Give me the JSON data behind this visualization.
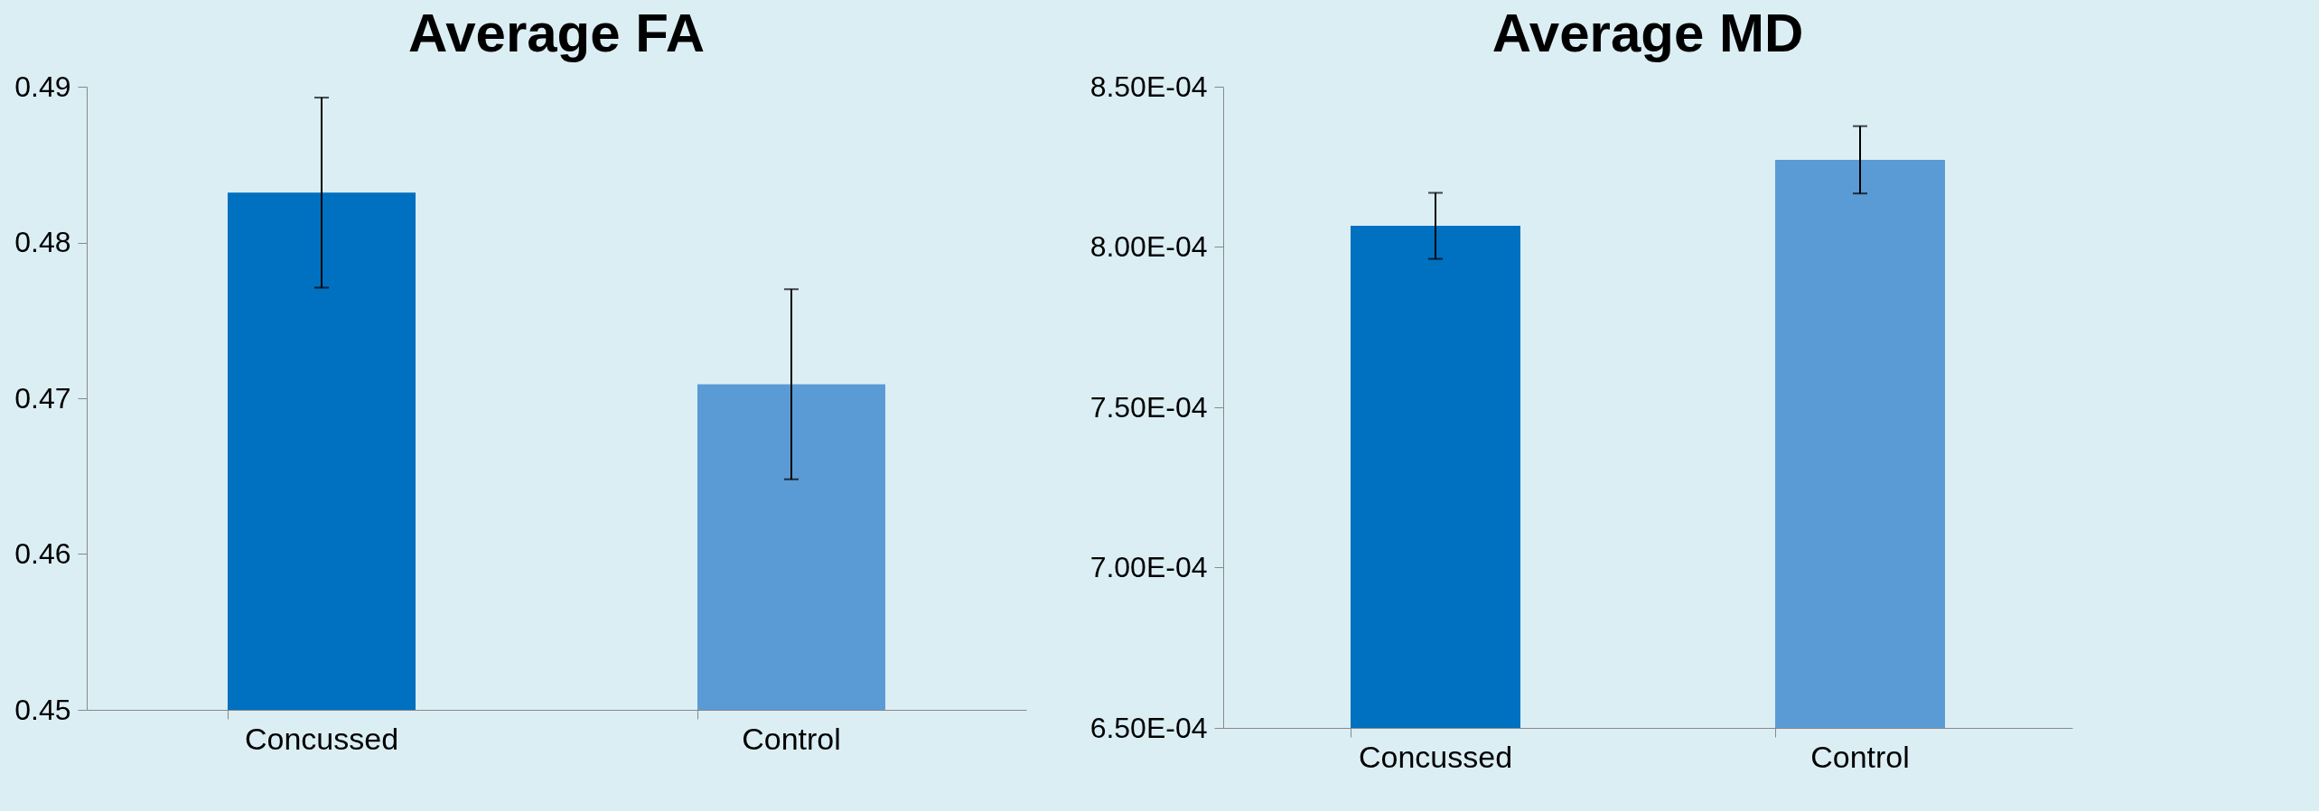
{
  "chart_data": [
    {
      "type": "bar",
      "title": "Average FA",
      "categories": [
        "Concussed",
        "Control"
      ],
      "values": [
        0.4832,
        0.4709
      ],
      "errors": [
        0.0061,
        0.0061
      ],
      "colors": [
        "#0070c0",
        "#5b9bd5"
      ],
      "ylim": [
        0.45,
        0.49
      ],
      "yticks": [
        0.45,
        0.46,
        0.47,
        0.48,
        0.49
      ],
      "grid": false
    },
    {
      "type": "bar",
      "title": "Average MD",
      "categories": [
        "Concussed",
        "Control"
      ],
      "values": [
        0.0008066,
        0.0008272
      ],
      "errors": [
        1.03e-05,
        1.05e-05
      ],
      "colors": [
        "#0070c0",
        "#5b9bd5"
      ],
      "ylim": [
        0.00065,
        0.00085
      ],
      "yticks": [
        {
          "value": 0.00065,
          "label": "6.50E-04"
        },
        {
          "value": 0.0007,
          "label": "7.00E-04"
        },
        {
          "value": 0.00075,
          "label": "7.50E-04"
        },
        {
          "value": 0.0008,
          "label": "8.00E-04"
        },
        {
          "value": 0.00085,
          "label": "8.50E-04"
        }
      ],
      "grid": false
    }
  ]
}
